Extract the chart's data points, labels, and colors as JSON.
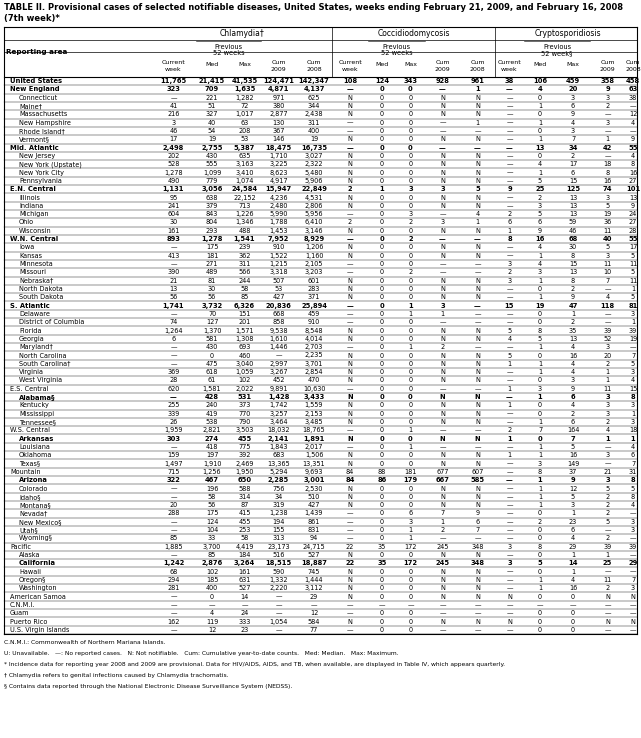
{
  "title_line1": "TABLE II. Provisional cases of selected notifiable diseases, United States, weeks ending February 21, 2009, and February 16, 2008",
  "title_line2": "(7th week)*",
  "footnotes": [
    "C.N.M.I.: Commonwealth of Northern Mariana Islands.",
    "U: Unavailable.   —: No reported cases.   N: Not notifiable.   Cum: Cumulative year-to-date counts.   Med: Median.   Max: Maximum.",
    "* Incidence data for reporting year 2008 and 2009 are provisional. Data for HIV/AIDS, AIDS, and TB, when available, are displayed in Table IV, which appears quarterly.",
    "† Chlamydia refers to genital infections caused by Chlamydia trachomatis.",
    "§ Contains data reported through the National Electronic Disease Surveillance System (NEDSS)."
  ],
  "rows": [
    [
      "United States",
      "11,765",
      "21,415",
      "41,535",
      "124,471",
      "142,347",
      "108",
      "124",
      "343",
      "928",
      "961",
      "38",
      "106",
      "459",
      "358",
      "458"
    ],
    [
      "New England",
      "323",
      "709",
      "1,635",
      "4,871",
      "4,137",
      "—",
      "0",
      "0",
      "—",
      "1",
      "—",
      "4",
      "20",
      "9",
      "63"
    ],
    [
      "  Connecticut",
      "—",
      "221",
      "1,282",
      "971",
      "625",
      "N",
      "0",
      "0",
      "N",
      "N",
      "—",
      "0",
      "3",
      "3",
      "38"
    ],
    [
      "  Maine†",
      "41",
      "51",
      "72",
      "380",
      "344",
      "N",
      "0",
      "0",
      "N",
      "N",
      "—",
      "1",
      "6",
      "2",
      "—"
    ],
    [
      "  Massachusetts",
      "216",
      "327",
      "1,017",
      "2,877",
      "2,438",
      "N",
      "0",
      "0",
      "N",
      "N",
      "—",
      "0",
      "9",
      "—",
      "12"
    ],
    [
      "  New Hampshire",
      "3",
      "40",
      "63",
      "130",
      "311",
      "—",
      "0",
      "0",
      "—",
      "1",
      "—",
      "1",
      "4",
      "3",
      "4"
    ],
    [
      "  Rhode Island†",
      "46",
      "54",
      "208",
      "367",
      "400",
      "—",
      "0",
      "0",
      "—",
      "—",
      "—",
      "0",
      "3",
      "—",
      "—"
    ],
    [
      "  Vermont§",
      "17",
      "19",
      "53",
      "146",
      "19",
      "N",
      "0",
      "0",
      "N",
      "N",
      "—",
      "1",
      "7",
      "1",
      "9"
    ],
    [
      "Mid. Atlantic",
      "2,498",
      "2,755",
      "5,387",
      "18,475",
      "16,735",
      "—",
      "0",
      "0",
      "—",
      "—",
      "—",
      "13",
      "34",
      "42",
      "55"
    ],
    [
      "  New Jersey",
      "202",
      "430",
      "635",
      "1,710",
      "3,027",
      "N",
      "0",
      "0",
      "N",
      "N",
      "—",
      "0",
      "2",
      "—",
      "4"
    ],
    [
      "  New York (Upstate)",
      "528",
      "555",
      "3,163",
      "3,225",
      "2,322",
      "N",
      "0",
      "0",
      "N",
      "N",
      "—",
      "4",
      "17",
      "18",
      "8"
    ],
    [
      "  New York City",
      "1,278",
      "1,099",
      "3,410",
      "8,623",
      "5,480",
      "N",
      "0",
      "0",
      "N",
      "N",
      "—",
      "1",
      "6",
      "8",
      "16"
    ],
    [
      "  Pennsylvania",
      "490",
      "779",
      "1,074",
      "4,917",
      "5,906",
      "N",
      "0",
      "0",
      "N",
      "N",
      "—",
      "5",
      "15",
      "16",
      "27"
    ],
    [
      "E.N. Central",
      "1,131",
      "3,056",
      "24,584",
      "15,947",
      "22,849",
      "2",
      "1",
      "3",
      "3",
      "5",
      "9",
      "25",
      "125",
      "74",
      "101"
    ],
    [
      "  Illinois",
      "95",
      "638",
      "22,152",
      "4,236",
      "4,531",
      "N",
      "0",
      "0",
      "N",
      "N",
      "—",
      "2",
      "13",
      "3",
      "13"
    ],
    [
      "  Indiana",
      "241",
      "379",
      "713",
      "2,480",
      "2,806",
      "N",
      "0",
      "0",
      "N",
      "N",
      "—",
      "3",
      "13",
      "5",
      "9"
    ],
    [
      "  Michigan",
      "604",
      "843",
      "1,226",
      "5,990",
      "5,956",
      "—",
      "0",
      "3",
      "—",
      "4",
      "2",
      "5",
      "13",
      "19",
      "24"
    ],
    [
      "  Ohio",
      "30",
      "804",
      "1,346",
      "1,788",
      "6,410",
      "2",
      "0",
      "2",
      "3",
      "1",
      "6",
      "6",
      "59",
      "36",
      "27"
    ],
    [
      "  Wisconsin",
      "161",
      "293",
      "488",
      "1,453",
      "3,146",
      "N",
      "0",
      "0",
      "N",
      "N",
      "1",
      "9",
      "46",
      "11",
      "28"
    ],
    [
      "W.N. Central",
      "893",
      "1,278",
      "1,541",
      "7,952",
      "8,929",
      "—",
      "0",
      "2",
      "—",
      "—",
      "8",
      "16",
      "68",
      "40",
      "55"
    ],
    [
      "  Iowa",
      "—",
      "175",
      "239",
      "910",
      "1,206",
      "N",
      "0",
      "0",
      "N",
      "N",
      "—",
      "4",
      "30",
      "5",
      "17"
    ],
    [
      "  Kansas",
      "413",
      "181",
      "362",
      "1,522",
      "1,160",
      "N",
      "0",
      "0",
      "N",
      "N",
      "—",
      "1",
      "8",
      "3",
      "5"
    ],
    [
      "  Minnesota",
      "—",
      "271",
      "311",
      "1,215",
      "2,105",
      "—",
      "0",
      "0",
      "—",
      "—",
      "3",
      "4",
      "15",
      "11",
      "11"
    ],
    [
      "  Missouri",
      "390",
      "489",
      "566",
      "3,318",
      "3,203",
      "—",
      "0",
      "2",
      "—",
      "—",
      "2",
      "3",
      "13",
      "10",
      "5"
    ],
    [
      "  Nebraska†",
      "21",
      "81",
      "244",
      "507",
      "601",
      "N",
      "0",
      "0",
      "N",
      "N",
      "3",
      "1",
      "8",
      "7",
      "11"
    ],
    [
      "  North Dakota",
      "13",
      "30",
      "58",
      "53",
      "283",
      "N",
      "0",
      "0",
      "N",
      "N",
      "—",
      "0",
      "2",
      "—",
      "1"
    ],
    [
      "  South Dakota",
      "56",
      "56",
      "85",
      "427",
      "371",
      "N",
      "0",
      "0",
      "N",
      "N",
      "—",
      "1",
      "9",
      "4",
      "5"
    ],
    [
      "S. Atlantic",
      "1,741",
      "3,732",
      "6,326",
      "20,836",
      "25,894",
      "—",
      "0",
      "1",
      "3",
      "—",
      "15",
      "19",
      "47",
      "118",
      "81"
    ],
    [
      "  Delaware",
      "—",
      "70",
      "151",
      "668",
      "459",
      "—",
      "0",
      "1",
      "1",
      "—",
      "—",
      "0",
      "1",
      "—",
      "3"
    ],
    [
      "  District of Columbia",
      "74",
      "127",
      "201",
      "858",
      "910",
      "—",
      "0",
      "0",
      "—",
      "—",
      "—",
      "0",
      "2",
      "—",
      "1"
    ],
    [
      "  Florida",
      "1,264",
      "1,370",
      "1,571",
      "9,538",
      "8,548",
      "N",
      "0",
      "0",
      "N",
      "N",
      "5",
      "8",
      "35",
      "39",
      "39"
    ],
    [
      "  Georgia",
      "6",
      "581",
      "1,308",
      "1,610",
      "4,014",
      "N",
      "0",
      "0",
      "N",
      "N",
      "4",
      "5",
      "13",
      "52",
      "19"
    ],
    [
      "  Maryland†",
      "—",
      "430",
      "693",
      "1,446",
      "2,703",
      "—",
      "0",
      "1",
      "2",
      "—",
      "—",
      "1",
      "4",
      "3",
      "—"
    ],
    [
      "  North Carolina",
      "—",
      "0",
      "460",
      "—",
      "2,235",
      "N",
      "0",
      "0",
      "N",
      "N",
      "5",
      "0",
      "16",
      "20",
      "7"
    ],
    [
      "  South Carolina†",
      "—",
      "475",
      "3,040",
      "2,997",
      "3,701",
      "N",
      "0",
      "0",
      "N",
      "N",
      "1",
      "1",
      "4",
      "2",
      "5"
    ],
    [
      "  Virginia",
      "369",
      "618",
      "1,059",
      "3,267",
      "2,854",
      "N",
      "0",
      "0",
      "N",
      "N",
      "—",
      "1",
      "4",
      "1",
      "3"
    ],
    [
      "  West Virginia",
      "28",
      "61",
      "102",
      "452",
      "470",
      "N",
      "0",
      "0",
      "N",
      "N",
      "—",
      "0",
      "3",
      "1",
      "4"
    ],
    [
      "E.S. Central",
      "620",
      "1,581",
      "2,022",
      "9,891",
      "10,630",
      "—",
      "0",
      "0",
      "—",
      "—",
      "1",
      "3",
      "9",
      "11",
      "15"
    ],
    [
      "  Alabama§",
      "—",
      "428",
      "531",
      "1,428",
      "3,433",
      "N",
      "0",
      "0",
      "N",
      "N",
      "—",
      "1",
      "6",
      "3",
      "8"
    ],
    [
      "  Kentucky",
      "255",
      "240",
      "373",
      "1,742",
      "1,559",
      "N",
      "0",
      "0",
      "N",
      "N",
      "1",
      "0",
      "4",
      "3",
      "3"
    ],
    [
      "  Mississippi",
      "339",
      "419",
      "770",
      "3,257",
      "2,153",
      "N",
      "0",
      "0",
      "N",
      "N",
      "—",
      "0",
      "2",
      "3",
      "1"
    ],
    [
      "  Tennessee§",
      "26",
      "538",
      "790",
      "3,464",
      "3,485",
      "N",
      "0",
      "0",
      "N",
      "N",
      "—",
      "1",
      "6",
      "2",
      "3"
    ],
    [
      "W.S. Central",
      "1,959",
      "2,821",
      "3,503",
      "18,032",
      "18,765",
      "—",
      "0",
      "1",
      "—",
      "—",
      "2",
      "7",
      "164",
      "4",
      "18"
    ],
    [
      "  Arkansas",
      "303",
      "274",
      "455",
      "2,141",
      "1,891",
      "N",
      "0",
      "0",
      "N",
      "N",
      "1",
      "0",
      "7",
      "1",
      "1"
    ],
    [
      "  Louisiana",
      "—",
      "418",
      "775",
      "1,843",
      "2,017",
      "—",
      "0",
      "1",
      "—",
      "—",
      "—",
      "1",
      "5",
      "—",
      "4"
    ],
    [
      "  Oklahoma",
      "159",
      "197",
      "392",
      "683",
      "1,506",
      "N",
      "0",
      "0",
      "N",
      "N",
      "1",
      "1",
      "16",
      "3",
      "6"
    ],
    [
      "  Texas§",
      "1,497",
      "1,910",
      "2,469",
      "13,365",
      "13,351",
      "N",
      "0",
      "0",
      "N",
      "N",
      "—",
      "3",
      "149",
      "—",
      "7"
    ],
    [
      "Mountain",
      "715",
      "1,256",
      "1,950",
      "5,294",
      "9,693",
      "84",
      "88",
      "181",
      "677",
      "607",
      "—",
      "8",
      "37",
      "21",
      "31"
    ],
    [
      "  Arizona",
      "322",
      "467",
      "650",
      "2,285",
      "3,001",
      "84",
      "86",
      "179",
      "667",
      "585",
      "—",
      "1",
      "9",
      "3",
      "8"
    ],
    [
      "  Colorado",
      "—",
      "196",
      "588",
      "756",
      "2,530",
      "N",
      "0",
      "0",
      "N",
      "N",
      "—",
      "1",
      "12",
      "5",
      "5"
    ],
    [
      "  Idaho§",
      "—",
      "58",
      "314",
      "34",
      "510",
      "N",
      "0",
      "0",
      "N",
      "N",
      "—",
      "1",
      "5",
      "2",
      "8"
    ],
    [
      "  Montana§",
      "20",
      "56",
      "87",
      "319",
      "427",
      "N",
      "0",
      "0",
      "N",
      "N",
      "—",
      "1",
      "3",
      "2",
      "4"
    ],
    [
      "  Nevada†",
      "288",
      "175",
      "415",
      "1,238",
      "1,439",
      "—",
      "0",
      "6",
      "7",
      "9",
      "—",
      "0",
      "1",
      "2",
      "—"
    ],
    [
      "  New Mexico§",
      "—",
      "124",
      "455",
      "194",
      "861",
      "—",
      "0",
      "3",
      "1",
      "6",
      "—",
      "2",
      "23",
      "5",
      "3"
    ],
    [
      "  Utah§",
      "—",
      "104",
      "253",
      "155",
      "831",
      "—",
      "0",
      "1",
      "2",
      "7",
      "—",
      "0",
      "6",
      "—",
      "3"
    ],
    [
      "  Wyoming§",
      "85",
      "33",
      "58",
      "313",
      "94",
      "—",
      "0",
      "1",
      "—",
      "—",
      "—",
      "0",
      "4",
      "2",
      "—"
    ],
    [
      "Pacific",
      "1,885",
      "3,700",
      "4,419",
      "23,173",
      "24,715",
      "22",
      "35",
      "172",
      "245",
      "348",
      "3",
      "8",
      "29",
      "39",
      "39"
    ],
    [
      "  Alaska",
      "—",
      "85",
      "184",
      "516",
      "527",
      "N",
      "0",
      "0",
      "N",
      "N",
      "—",
      "0",
      "1",
      "1",
      "—"
    ],
    [
      "  California",
      "1,242",
      "2,876",
      "3,264",
      "18,515",
      "18,887",
      "22",
      "35",
      "172",
      "245",
      "348",
      "3",
      "5",
      "14",
      "25",
      "29"
    ],
    [
      "  Hawaii",
      "68",
      "102",
      "161",
      "590",
      "745",
      "N",
      "0",
      "0",
      "N",
      "N",
      "—",
      "0",
      "1",
      "—",
      "—"
    ],
    [
      "  Oregon§",
      "294",
      "185",
      "631",
      "1,332",
      "1,444",
      "N",
      "0",
      "0",
      "N",
      "N",
      "—",
      "1",
      "4",
      "11",
      "7"
    ],
    [
      "  Washington",
      "281",
      "400",
      "527",
      "2,220",
      "3,112",
      "N",
      "0",
      "0",
      "N",
      "N",
      "—",
      "1",
      "16",
      "2",
      "3"
    ],
    [
      "American Samoa",
      "—",
      "0",
      "14",
      "—",
      "29",
      "N",
      "0",
      "0",
      "N",
      "N",
      "N",
      "0",
      "0",
      "N",
      "N"
    ],
    [
      "C.N.M.I.",
      "—",
      "—",
      "—",
      "—",
      "—",
      "—",
      "—",
      "—",
      "—",
      "—",
      "—",
      "—",
      "—",
      "—",
      "—"
    ],
    [
      "Guam",
      "—",
      "4",
      "24",
      "—",
      "12",
      "—",
      "0",
      "0",
      "—",
      "—",
      "—",
      "0",
      "0",
      "—",
      "—"
    ],
    [
      "Puerto Rico",
      "162",
      "119",
      "333",
      "1,054",
      "584",
      "N",
      "0",
      "0",
      "N",
      "N",
      "N",
      "0",
      "0",
      "N",
      "N"
    ],
    [
      "U.S. Virgin Islands",
      "—",
      "12",
      "23",
      "—",
      "77",
      "—",
      "0",
      "0",
      "—",
      "—",
      "—",
      "0",
      "0",
      "—",
      "—"
    ]
  ],
  "bold_rows": [
    0,
    1,
    8,
    13,
    19,
    27,
    38,
    43,
    48,
    58
  ],
  "background_color": "#ffffff",
  "col_group_names": [
    "Chlamydia†",
    "Coccidiodomycosis",
    "Cryptosporidiosis"
  ],
  "col_group_3rd_suffix": "52 week§",
  "col_group_suffix": "52 weeks"
}
